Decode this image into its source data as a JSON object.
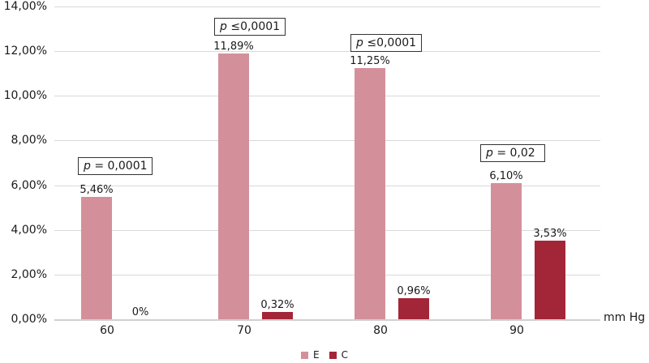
{
  "chart_data": {
    "type": "bar",
    "title": "",
    "xlabel": "mm Hg",
    "ylabel": "",
    "ylim": [
      0,
      14
    ],
    "y_ticks": [
      "0,00%",
      "2,00%",
      "4,00%",
      "6,00%",
      "8,00%",
      "10,00%",
      "12,00%",
      "14,00%"
    ],
    "categories": [
      "60",
      "70",
      "80",
      "90"
    ],
    "series": [
      {
        "name": "E",
        "color": "#d4909a",
        "values": [
          5.46,
          11.89,
          11.25,
          6.1
        ],
        "labels": [
          "5,46%",
          "11,89%",
          "11,25%",
          "6,10%"
        ]
      },
      {
        "name": "C",
        "color": "#a32638",
        "values": [
          0,
          0.32,
          0.96,
          3.53
        ],
        "labels": [
          "0%",
          "0,32%",
          "0,96%",
          "3,53%"
        ]
      }
    ],
    "annotations": [
      {
        "category": "60",
        "p_symbol": "p",
        "text": " = 0,0001"
      },
      {
        "category": "70",
        "p_symbol": "p",
        "text": " ≤0,0001"
      },
      {
        "category": "80",
        "p_symbol": "p",
        "text": " ≤0,0001"
      },
      {
        "category": "90",
        "p_symbol": "p",
        "text": " = 0,02"
      }
    ],
    "grid": true,
    "legend_position": "bottom"
  }
}
